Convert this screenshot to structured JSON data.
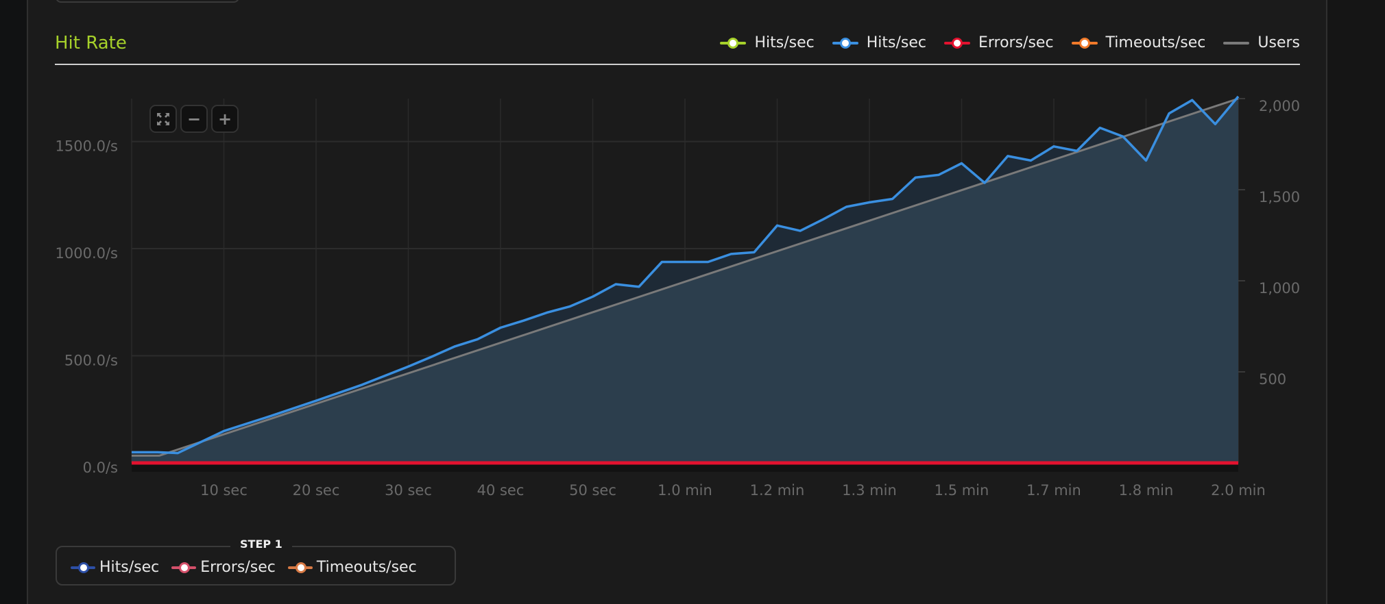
{
  "panel": {
    "title": "Hit Rate"
  },
  "legend_top": [
    {
      "label": "Hits/sec",
      "color": "#a6d12a",
      "marker": "line-dot"
    },
    {
      "label": "Hits/sec",
      "color": "#3a8fe0",
      "marker": "line-dot"
    },
    {
      "label": "Errors/sec",
      "color": "#e3122f",
      "marker": "line-dot"
    },
    {
      "label": "Timeouts/sec",
      "color": "#f07a2a",
      "marker": "line-dot"
    },
    {
      "label": "Users",
      "color": "#7a7a7a",
      "marker": "line"
    }
  ],
  "zoom_controls": [
    {
      "icon": "reset-zoom-icon"
    },
    {
      "icon": "zoom-out-icon",
      "label": "−"
    },
    {
      "icon": "zoom-in-icon",
      "label": "+"
    }
  ],
  "step_legend": {
    "title": "STEP 1",
    "items": [
      {
        "label": "Hits/sec",
        "color": "#2d4fa6"
      },
      {
        "label": "Errors/sec",
        "color": "#d4506a"
      },
      {
        "label": "Timeouts/sec",
        "color": "#d87a45"
      }
    ]
  },
  "chart_data": {
    "type": "line",
    "x_unit": "seconds",
    "xlim": [
      0,
      120
    ],
    "x_ticks": [
      {
        "value": 10,
        "label": "10 sec"
      },
      {
        "value": 20,
        "label": "20 sec"
      },
      {
        "value": 30,
        "label": "30 sec"
      },
      {
        "value": 40,
        "label": "40 sec"
      },
      {
        "value": 50,
        "label": "50 sec"
      },
      {
        "value": 60,
        "label": "1.0 min"
      },
      {
        "value": 70,
        "label": "1.2 min"
      },
      {
        "value": 80,
        "label": "1.3 min"
      },
      {
        "value": 90,
        "label": "1.5 min"
      },
      {
        "value": 100,
        "label": "1.7 min"
      },
      {
        "value": 110,
        "label": "1.8 min"
      },
      {
        "value": 120,
        "label": "2.0 min"
      }
    ],
    "y_left": {
      "ylim": [
        0,
        1700
      ],
      "ticks": [
        {
          "value": 0,
          "label": "0.0/s"
        },
        {
          "value": 500,
          "label": "500.0/s"
        },
        {
          "value": 1000,
          "label": "1000.0/s"
        },
        {
          "value": 1500,
          "label": "1500.0/s"
        }
      ]
    },
    "y_right": {
      "ylim": [
        0,
        2000
      ],
      "ticks": [
        {
          "value": 500,
          "label": "500"
        },
        {
          "value": 1000,
          "label": "1,000"
        },
        {
          "value": 1500,
          "label": "1,500"
        },
        {
          "value": 2000,
          "label": "2,000"
        }
      ]
    },
    "grid": true,
    "legend": "top-right",
    "series": [
      {
        "name": "Hits/sec",
        "axis": "left",
        "color": "#3a8fe0",
        "x": [
          0,
          2.8,
          5,
          10,
          15,
          20,
          25,
          30,
          32.5,
          35,
          37.5,
          40,
          42.5,
          45,
          47.5,
          50,
          52.5,
          55,
          57.5,
          60,
          62.5,
          65,
          67.5,
          70,
          72.5,
          75,
          77.5,
          80,
          82.5,
          85,
          87.5,
          90,
          92.5,
          95,
          97.5,
          100,
          102.5,
          105,
          107.5,
          110,
          112.5,
          115,
          117.5,
          120
        ],
        "y": [
          50,
          50,
          46,
          149,
          218,
          290,
          365,
          450,
          495,
          543,
          577,
          631,
          664,
          701,
          730,
          776,
          834,
          822,
          938,
          938,
          938,
          975,
          983,
          1108,
          1083,
          1137,
          1195,
          1216,
          1232,
          1332,
          1344,
          1398,
          1307,
          1432,
          1411,
          1477,
          1456,
          1564,
          1523,
          1411,
          1631,
          1693,
          1581,
          1710
        ]
      },
      {
        "name": "Errors/sec",
        "axis": "left",
        "color": "#e3122f",
        "x": [
          0,
          120
        ],
        "y": [
          0,
          0
        ]
      },
      {
        "name": "Users",
        "axis": "right",
        "color": "#7a7a7a",
        "x": [
          0,
          3,
          120
        ],
        "y": [
          40,
          40,
          2000
        ]
      }
    ]
  }
}
